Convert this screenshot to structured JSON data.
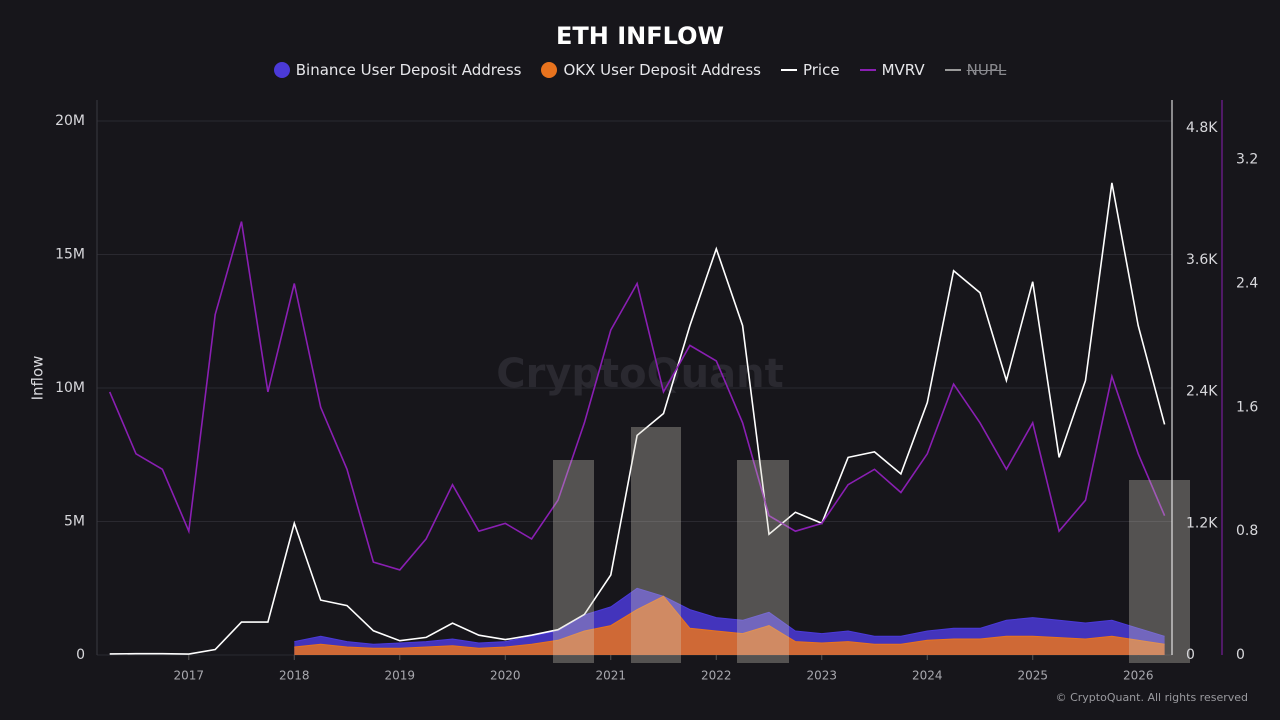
{
  "chart_data": {
    "type": "line",
    "title": "ETH INFLOW",
    "y_label": "Inflow",
    "watermark": "CryptoQuant",
    "credit": "© CryptoQuant. All rights reserved",
    "xlim": [
      2016.13,
      2026.32
    ],
    "xticks": [
      2017,
      2018,
      2019,
      2020,
      2021,
      2022,
      2023,
      2024,
      2025,
      2026
    ],
    "ylim": [
      0,
      20000000
    ],
    "yticks": [
      0,
      {
        "value": 5000000,
        "label": "5M"
      },
      {
        "value": 10000000,
        "label": "10M"
      },
      {
        "value": 15000000,
        "label": "15M"
      },
      {
        "value": 20000000,
        "label": "20M"
      }
    ],
    "y2lim": [
      0,
      4864
    ],
    "y2ticks": [
      0,
      {
        "value": 1200,
        "label": "1.2K"
      },
      {
        "value": 2400,
        "label": "2.4K"
      },
      {
        "value": 3600,
        "label": "3.6K"
      },
      {
        "value": 4800,
        "label": "4.8K"
      }
    ],
    "y3lim": [
      0,
      3.45
    ],
    "y3ticks": [
      0,
      0.8,
      1.6,
      2.4,
      3.2
    ],
    "grid": true,
    "x": [
      2016.25,
      2016.5,
      2016.75,
      2017,
      2017.25,
      2017.5,
      2017.75,
      2018,
      2018.25,
      2018.5,
      2018.75,
      2019,
      2019.25,
      2019.5,
      2019.75,
      2020,
      2020.25,
      2020.5,
      2020.75,
      2021,
      2021.25,
      2021.5,
      2021.75,
      2022,
      2022.25,
      2022.5,
      2022.75,
      2023,
      2023.25,
      2023.5,
      2023.75,
      2024,
      2024.25,
      2024.5,
      2024.75,
      2025,
      2025.25,
      2025.5,
      2025.75,
      2026,
      2026.25
    ],
    "series": [
      {
        "name": "Binance User Deposit Address",
        "color": "#4b3ad8",
        "style": "area",
        "axis": "y",
        "values": [
          null,
          null,
          null,
          null,
          null,
          null,
          null,
          500000,
          700000,
          500000,
          400000,
          450000,
          500000,
          600000,
          450000,
          500000,
          700000,
          900000,
          1500000,
          1800000,
          2500000,
          2200000,
          1700000,
          1400000,
          1300000,
          1600000,
          900000,
          800000,
          900000,
          700000,
          700000,
          900000,
          1000000,
          1000000,
          1300000,
          1400000,
          1300000,
          1200000,
          1300000,
          1000000,
          700000
        ]
      },
      {
        "name": "OKX User Deposit Address",
        "color": "#e8731e",
        "style": "area",
        "axis": "y",
        "values": [
          null,
          null,
          null,
          null,
          null,
          null,
          null,
          300000,
          400000,
          300000,
          250000,
          250000,
          300000,
          350000,
          250000,
          300000,
          400000,
          550000,
          900000,
          1100000,
          1700000,
          2200000,
          1000000,
          900000,
          800000,
          1100000,
          500000,
          450000,
          500000,
          400000,
          400000,
          550000,
          600000,
          600000,
          700000,
          700000,
          650000,
          600000,
          700000,
          550000,
          400000
        ]
      },
      {
        "name": "Price",
        "color": "#ffffff",
        "style": "line",
        "axis": "y2",
        "values": [
          10,
          12,
          12,
          8,
          50,
          300,
          300,
          1200,
          500,
          450,
          220,
          130,
          160,
          290,
          180,
          140,
          180,
          230,
          370,
          730,
          2000,
          2200,
          3000,
          3700,
          3000,
          1100,
          1300,
          1200,
          1800,
          1850,
          1650,
          2300,
          3500,
          3300,
          2500,
          3400,
          1800,
          2500,
          4300,
          3000,
          2100
        ]
      },
      {
        "name": "MVRV",
        "color": "#8a1fb3",
        "style": "line",
        "axis": "y3",
        "values": [
          1.7,
          1.3,
          1.2,
          0.8,
          2.2,
          2.8,
          1.7,
          2.4,
          1.6,
          1.2,
          0.6,
          0.55,
          0.75,
          1.1,
          0.8,
          0.85,
          0.75,
          1.0,
          1.5,
          2.1,
          2.4,
          1.7,
          2.0,
          1.9,
          1.5,
          0.9,
          0.8,
          0.85,
          1.1,
          1.2,
          1.05,
          1.3,
          1.75,
          1.5,
          1.2,
          1.5,
          0.8,
          1.0,
          1.8,
          1.3,
          0.9
        ]
      }
    ],
    "hidden_series": [
      {
        "name": "NUPL",
        "color": "#9a9a9a"
      }
    ]
  }
}
